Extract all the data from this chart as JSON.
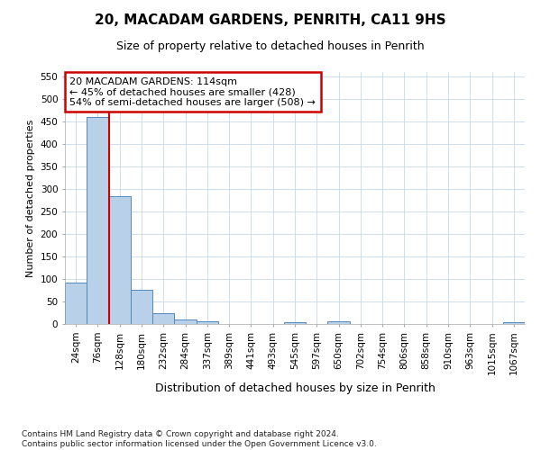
{
  "title_line1": "20, MACADAM GARDENS, PENRITH, CA11 9HS",
  "title_line2": "Size of property relative to detached houses in Penrith",
  "xlabel": "Distribution of detached houses by size in Penrith",
  "ylabel": "Number of detached properties",
  "bar_labels": [
    "24sqm",
    "76sqm",
    "128sqm",
    "180sqm",
    "232sqm",
    "284sqm",
    "337sqm",
    "389sqm",
    "441sqm",
    "493sqm",
    "545sqm",
    "597sqm",
    "650sqm",
    "702sqm",
    "754sqm",
    "806sqm",
    "858sqm",
    "910sqm",
    "963sqm",
    "1015sqm",
    "1067sqm"
  ],
  "bar_values": [
    93,
    460,
    285,
    77,
    25,
    10,
    6,
    0,
    0,
    0,
    5,
    0,
    6,
    0,
    0,
    0,
    0,
    0,
    0,
    0,
    5
  ],
  "bar_color": "#b8d0e8",
  "bar_edge_color": "#5588bb",
  "annotation_box_text": "20 MACADAM GARDENS: 114sqm\n← 45% of detached houses are smaller (428)\n54% of semi-detached houses are larger (508) →",
  "red_line_x": 1.5,
  "ylim": [
    0,
    560
  ],
  "yticks": [
    0,
    50,
    100,
    150,
    200,
    250,
    300,
    350,
    400,
    450,
    500,
    550
  ],
  "footer_line1": "Contains HM Land Registry data © Crown copyright and database right 2024.",
  "footer_line2": "Contains public sector information licensed under the Open Government Licence v3.0.",
  "background_color": "#ffffff",
  "grid_color": "#c8d8e8",
  "annotation_border_color": "#cc0000",
  "red_line_color": "#cc0000",
  "title1_fontsize": 11,
  "title2_fontsize": 9,
  "ylabel_fontsize": 8,
  "xlabel_fontsize": 9,
  "tick_fontsize": 7.5,
  "footer_fontsize": 6.5,
  "ann_fontsize": 8
}
